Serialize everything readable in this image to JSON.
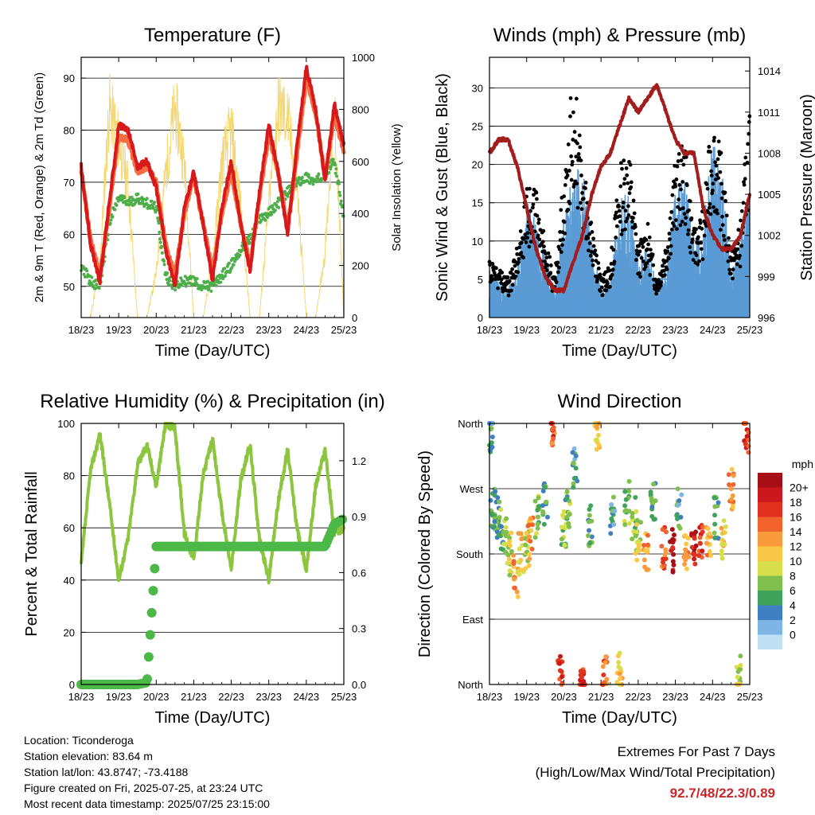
{
  "info": {
    "location": "Location: Ticonderoga",
    "elevation": "Station elevation: 83.64 m",
    "latlon": "Station lat/lon: 43.8747; -73.4188",
    "created": "Figure created on Fri, 2025-07-25, at 23:24 UTC",
    "timestamp": "Most recent data timestamp: 2025/07/25 23:15:00"
  },
  "extremes": {
    "heading": "Extremes For Past 7 Days",
    "subheading": "(High/Low/Max Wind/Total Precipitation)",
    "values": "92.7/48/22.3/0.89"
  },
  "colors": {
    "t2m": "#d7191c",
    "t9m": "#f46d43",
    "td": "#4daf4a",
    "solar": "#f5d76e",
    "wind": "#5b9bd5",
    "gust": "#000000",
    "pressure": "#a31d1d",
    "rh": "#8cc63f",
    "precip": "#4cb848"
  },
  "chart_data": [
    {
      "type": "line",
      "title": "Temperature (F)",
      "xlabel": "Time (Day/UTC)",
      "ylabel": "2m & 9m T (Red, Orange) & 2m Td (Green)",
      "y2label": "Solar Insolation (Yellow)",
      "xticks": [
        "18/23",
        "19/23",
        "20/23",
        "21/23",
        "22/23",
        "23/23",
        "24/23",
        "25/23"
      ],
      "ylim": [
        44,
        94
      ],
      "yticks": [
        50,
        60,
        70,
        80,
        90
      ],
      "y2lim": [
        0,
        1000
      ],
      "y2ticks": [
        0,
        200,
        400,
        600,
        800,
        1000
      ],
      "grid": true,
      "x": [
        0,
        0.25,
        0.5,
        0.75,
        1,
        1.25,
        1.5,
        1.75,
        2,
        2.25,
        2.5,
        2.75,
        3,
        3.25,
        3.5,
        3.75,
        4,
        4.25,
        4.5,
        4.75,
        5,
        5.25,
        5.5,
        5.75,
        6,
        6.25,
        6.5,
        6.75,
        7
      ],
      "series": [
        {
          "name": "2m T",
          "values": [
            73,
            58,
            51,
            66,
            81,
            80,
            73,
            74,
            69,
            57,
            50,
            65,
            72,
            62,
            51,
            65,
            74,
            62,
            53,
            68,
            81,
            72,
            60,
            77,
            92,
            84,
            70,
            85,
            77
          ]
        },
        {
          "name": "9m T",
          "values": [
            72,
            59,
            52,
            65,
            79,
            78,
            72,
            73,
            70,
            58,
            52,
            64,
            71,
            62,
            53,
            64,
            72,
            62,
            54,
            67,
            79,
            72,
            61,
            75,
            90,
            83,
            71,
            83,
            76
          ]
        },
        {
          "name": "2m Td",
          "values": [
            54,
            51,
            50,
            62,
            67,
            66,
            67,
            66,
            65,
            52,
            50,
            51,
            51,
            50,
            50,
            52,
            54,
            57,
            59,
            63,
            64,
            66,
            68,
            70,
            71,
            70,
            72,
            74,
            63
          ]
        },
        {
          "name": "Solar",
          "values": [
            0,
            0,
            250,
            950,
            800,
            600,
            0,
            0,
            200,
            650,
            950,
            700,
            0,
            0,
            250,
            700,
            850,
            500,
            0,
            0,
            500,
            950,
            900,
            600,
            0,
            0,
            300,
            950,
            0
          ]
        }
      ]
    },
    {
      "type": "scatter",
      "title": "Winds (mph) & Pressure (mb)",
      "xlabel": "Time (Day/UTC)",
      "ylabel": "Sonic Wind & Gust (Blue, Black)",
      "y2label": "Station Pressure (Maroon)",
      "xticks": [
        "18/23",
        "19/23",
        "20/23",
        "21/23",
        "22/23",
        "23/23",
        "24/23",
        "25/23"
      ],
      "ylim": [
        0,
        34
      ],
      "yticks": [
        0,
        5,
        10,
        15,
        20,
        25,
        30
      ],
      "y2lim": [
        996,
        1015
      ],
      "y2ticks": [
        996,
        999,
        1002,
        1005,
        1008,
        1011,
        1014
      ],
      "grid": true,
      "x": [
        0,
        0.25,
        0.5,
        0.75,
        1,
        1.25,
        1.5,
        1.75,
        2,
        2.25,
        2.5,
        2.75,
        3,
        3.25,
        3.5,
        3.75,
        4,
        4.25,
        4.5,
        4.75,
        5,
        5.25,
        5.5,
        5.75,
        6,
        6.25,
        6.5,
        6.75,
        7
      ],
      "series": [
        {
          "name": "Wind",
          "values": [
            5,
            4,
            3,
            5,
            12,
            11,
            7,
            3,
            10,
            15,
            16,
            8,
            3,
            4,
            12,
            13,
            6,
            8,
            3,
            6,
            13,
            14,
            8,
            9,
            18,
            15,
            5,
            8,
            14
          ]
        },
        {
          "name": "Gust",
          "values": [
            8,
            6,
            5,
            9,
            17,
            16,
            10,
            5,
            18,
            31,
            21,
            12,
            5,
            7,
            19,
            22,
            9,
            12,
            5,
            10,
            20,
            22,
            11,
            14,
            26,
            20,
            8,
            12,
            28
          ]
        },
        {
          "name": "Pressure",
          "values": [
            1008,
            1009,
            1009,
            1007,
            1004,
            1001,
            999,
            998,
            998,
            1000,
            1002,
            1005,
            1007,
            1008,
            1010,
            1012,
            1011,
            1012,
            1013,
            1011,
            1009,
            1008,
            1008,
            1004,
            1002,
            1001,
            1001,
            1002,
            1005
          ]
        }
      ]
    },
    {
      "type": "line",
      "title": "Relative Humidity (%) & Precipitation (in)",
      "xlabel": "Time (Day/UTC)",
      "ylabel": "Percent & Total Rainfall",
      "xticks": [
        "18/23",
        "19/23",
        "20/23",
        "21/23",
        "22/23",
        "23/23",
        "24/23",
        "25/23"
      ],
      "ylim": [
        0,
        100
      ],
      "yticks": [
        0,
        20,
        40,
        60,
        80,
        100
      ],
      "y2lim": [
        0,
        1.4
      ],
      "y2ticks": [
        0.0,
        0.3,
        0.6,
        0.9,
        1.2
      ],
      "grid": true,
      "x": [
        0,
        0.25,
        0.5,
        0.75,
        1,
        1.25,
        1.5,
        1.75,
        2,
        2.25,
        2.5,
        2.75,
        3,
        3.25,
        3.5,
        3.75,
        4,
        4.25,
        4.5,
        4.75,
        5,
        5.25,
        5.5,
        5.75,
        6,
        6.25,
        6.5,
        6.75,
        7
      ],
      "series": [
        {
          "name": "RH",
          "values": [
            46,
            82,
            96,
            70,
            40,
            56,
            84,
            92,
            76,
            100,
            98,
            58,
            48,
            80,
            94,
            66,
            44,
            78,
            92,
            56,
            40,
            70,
            90,
            60,
            44,
            76,
            90,
            58,
            60
          ]
        },
        {
          "name": "Precip",
          "values": [
            0,
            0,
            0,
            0,
            0,
            0,
            0,
            0.01,
            0.74,
            0.74,
            0.74,
            0.74,
            0.74,
            0.74,
            0.74,
            0.74,
            0.74,
            0.74,
            0.74,
            0.74,
            0.74,
            0.74,
            0.74,
            0.74,
            0.74,
            0.74,
            0.74,
            0.86,
            0.89
          ]
        }
      ]
    },
    {
      "type": "scatter",
      "title": "Wind Direction",
      "xlabel": "Time (Day/UTC)",
      "ylabel": "Direction (Colored By Speed)",
      "xticks": [
        "18/23",
        "19/23",
        "20/23",
        "21/23",
        "22/23",
        "23/23",
        "24/23",
        "25/23"
      ],
      "yticks": [
        "North",
        "East",
        "South",
        "West",
        "North"
      ],
      "ylim": [
        0,
        360
      ],
      "grid": true,
      "legend": {
        "title": "mph",
        "labels": [
          "20+",
          "18",
          "16",
          "14",
          "12",
          "10",
          "8",
          "6",
          "4",
          "2",
          "0"
        ],
        "colors": [
          "#a50f15",
          "#cb181d",
          "#e0321f",
          "#f1622d",
          "#f99a3c",
          "#f9c846",
          "#d6df4a",
          "#7fbf4d",
          "#3fa35c",
          "#3f7fc1",
          "#7fb5e5",
          "#bfe0f5"
        ]
      },
      "x": [
        0.05,
        0.1,
        0.2,
        0.3,
        0.45,
        0.55,
        0.7,
        0.85,
        1.0,
        1.1,
        1.3,
        1.5,
        1.7,
        1.9,
        2.0,
        2.1,
        2.3,
        2.5,
        2.7,
        2.9,
        3.1,
        3.3,
        3.5,
        3.7,
        3.9,
        4.0,
        4.2,
        4.4,
        4.7,
        4.9,
        5.1,
        5.3,
        5.5,
        5.7,
        5.9,
        6.1,
        6.3,
        6.5,
        6.7,
        6.9
      ],
      "series": [
        {
          "name": "Direction",
          "values": [
            350,
            240,
            230,
            215,
            200,
            180,
            150,
            180,
            185,
            200,
            230,
            250,
            350,
            10,
            220,
            240,
            300,
            10,
            220,
            350,
            10,
            230,
            15,
            250,
            230,
            200,
            180,
            250,
            190,
            185,
            240,
            180,
            190,
            200,
            190,
            230,
            200,
            270,
            10,
            350
          ]
        },
        {
          "name": "Speed",
          "values": [
            3,
            4,
            4,
            5,
            6,
            8,
            12,
            10,
            8,
            12,
            6,
            4,
            15,
            16,
            6,
            5,
            3,
            16,
            4,
            10,
            14,
            3,
            10,
            5,
            6,
            8,
            12,
            4,
            14,
            18,
            3,
            12,
            18,
            16,
            12,
            4,
            10,
            12,
            8,
            16
          ]
        }
      ]
    }
  ]
}
